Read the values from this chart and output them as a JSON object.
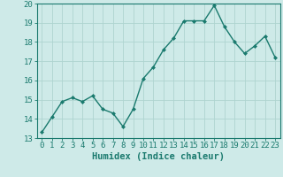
{
  "x": [
    0,
    1,
    2,
    3,
    4,
    5,
    6,
    7,
    8,
    9,
    10,
    11,
    12,
    13,
    14,
    15,
    16,
    17,
    18,
    19,
    20,
    21,
    22,
    23
  ],
  "y": [
    13.3,
    14.1,
    14.9,
    15.1,
    14.9,
    15.2,
    14.5,
    14.3,
    13.6,
    14.5,
    16.1,
    16.7,
    17.6,
    18.2,
    19.1,
    19.1,
    19.1,
    19.9,
    18.8,
    18.0,
    17.4,
    17.8,
    18.3,
    17.2
  ],
  "line_color": "#1a7a6e",
  "marker": "D",
  "marker_size": 2.0,
  "bg_color": "#ceeae8",
  "grid_color": "#aed4d0",
  "xlabel": "Humidex (Indice chaleur)",
  "ylim": [
    13,
    20
  ],
  "xlim": [
    -0.5,
    23.5
  ],
  "yticks": [
    13,
    14,
    15,
    16,
    17,
    18,
    19,
    20
  ],
  "xticks": [
    0,
    1,
    2,
    3,
    4,
    5,
    6,
    7,
    8,
    9,
    10,
    11,
    12,
    13,
    14,
    15,
    16,
    17,
    18,
    19,
    20,
    21,
    22,
    23
  ],
  "xtick_labels": [
    "0",
    "1",
    "2",
    "3",
    "4",
    "5",
    "6",
    "7",
    "8",
    "9",
    "10",
    "11",
    "12",
    "13",
    "14",
    "15",
    "16",
    "17",
    "18",
    "19",
    "20",
    "21",
    "22",
    "23"
  ],
  "tick_fontsize": 6.5,
  "xlabel_fontsize": 7.5,
  "line_width": 1.0
}
